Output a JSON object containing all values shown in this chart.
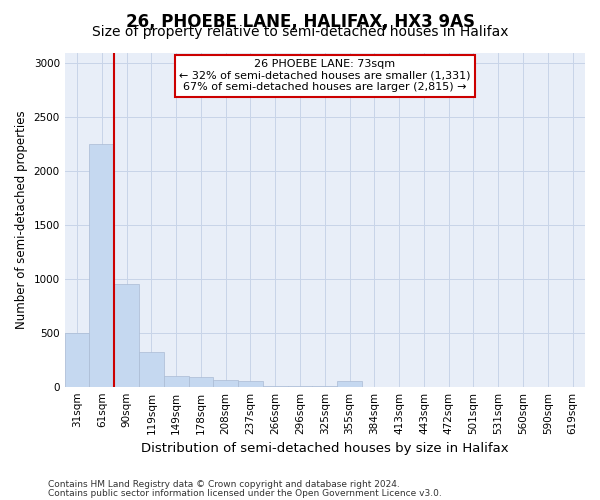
{
  "title": "26, PHOEBE LANE, HALIFAX, HX3 9AS",
  "subtitle": "Size of property relative to semi-detached houses in Halifax",
  "xlabel": "Distribution of semi-detached houses by size in Halifax",
  "ylabel": "Number of semi-detached properties",
  "footnote1": "Contains HM Land Registry data © Crown copyright and database right 2024.",
  "footnote2": "Contains public sector information licensed under the Open Government Licence v3.0.",
  "categories": [
    "31sqm",
    "61sqm",
    "90sqm",
    "119sqm",
    "149sqm",
    "178sqm",
    "208sqm",
    "237sqm",
    "266sqm",
    "296sqm",
    "325sqm",
    "355sqm",
    "384sqm",
    "413sqm",
    "443sqm",
    "472sqm",
    "501sqm",
    "531sqm",
    "560sqm",
    "590sqm",
    "619sqm"
  ],
  "values": [
    500,
    2250,
    950,
    320,
    100,
    90,
    60,
    50,
    5,
    5,
    5,
    50,
    0,
    0,
    0,
    0,
    0,
    0,
    0,
    0,
    0
  ],
  "bar_color": "#c5d8f0",
  "bar_edge_color": "#c5d8f0",
  "grid_color": "#c8d4e8",
  "background_color": "#e8eef8",
  "ylim": [
    0,
    3100
  ],
  "yticks": [
    0,
    500,
    1000,
    1500,
    2000,
    2500,
    3000
  ],
  "property_line_bin": 1,
  "property_label": "26 PHOEBE LANE: 73sqm",
  "annotation_line1": "← 32% of semi-detached houses are smaller (1,331)",
  "annotation_line2": "67% of semi-detached houses are larger (2,815) →",
  "annotation_box_color": "#ffffff",
  "annotation_box_edge_color": "#cc0000",
  "property_line_color": "#cc0000",
  "title_fontsize": 12,
  "subtitle_fontsize": 10,
  "tick_fontsize": 7.5,
  "annotation_fontsize": 8,
  "ylabel_fontsize": 8.5,
  "xlabel_fontsize": 9.5,
  "footnote_fontsize": 6.5
}
